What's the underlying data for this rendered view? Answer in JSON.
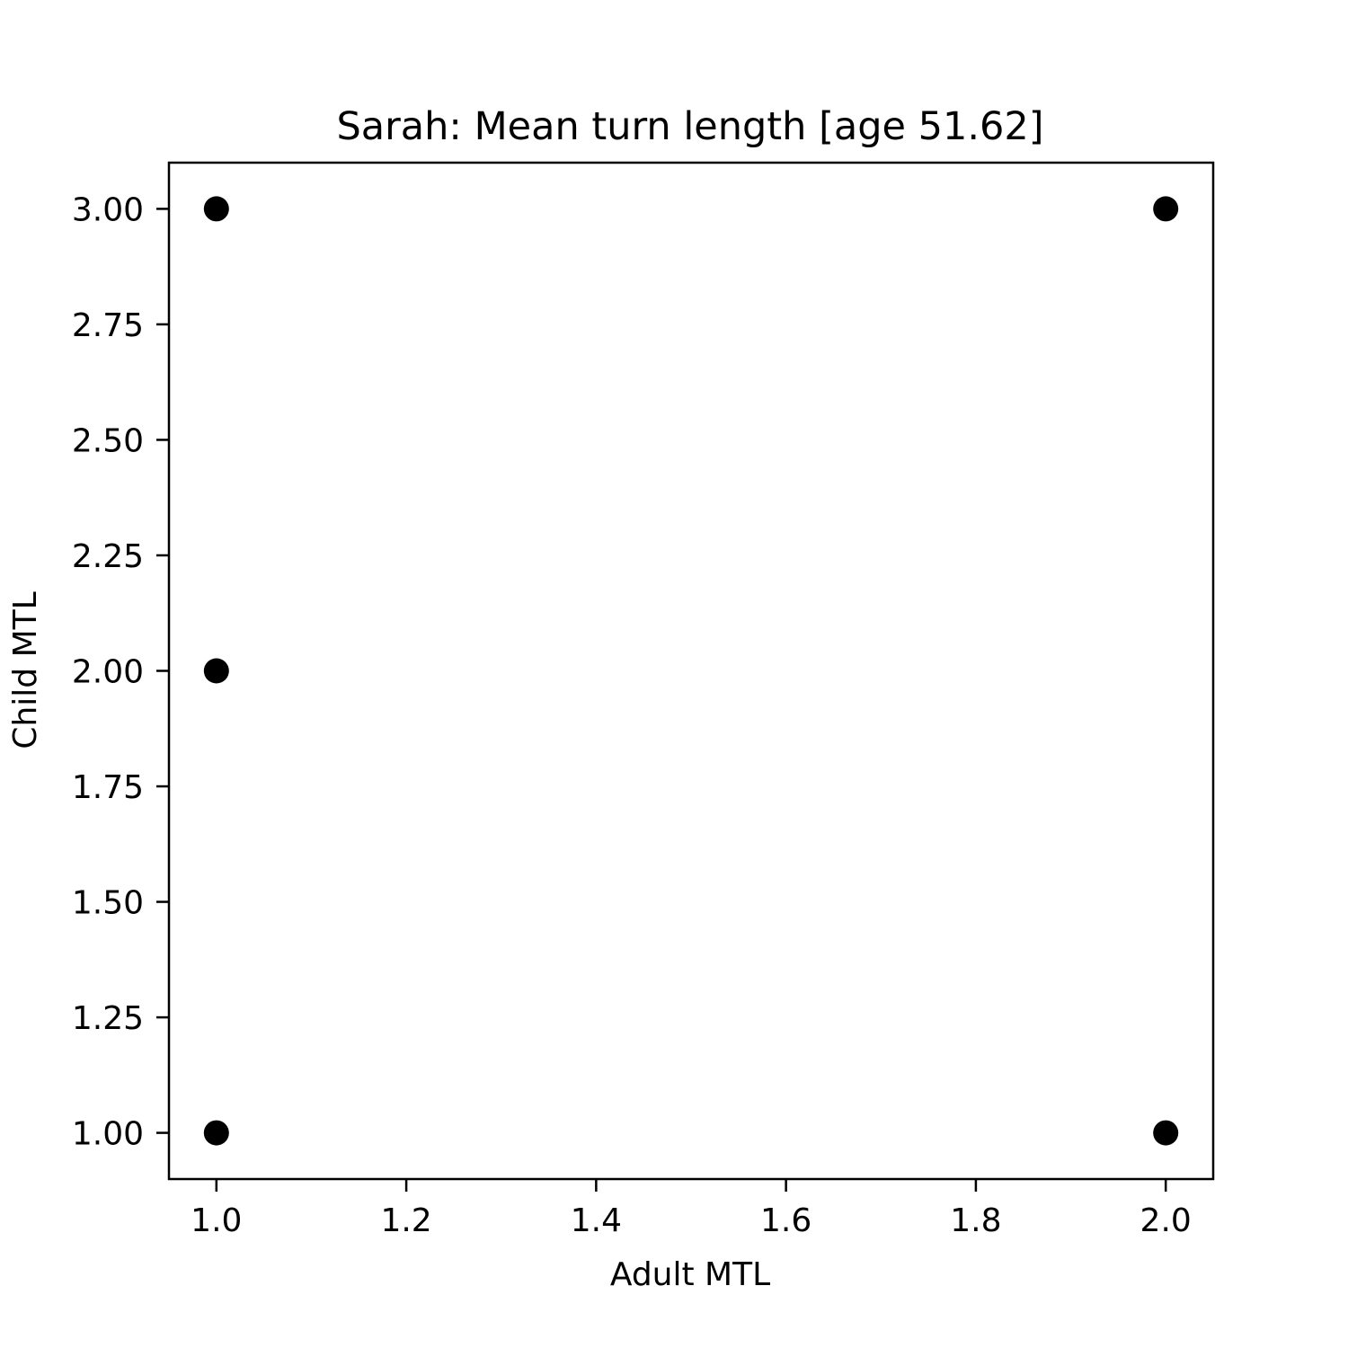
{
  "chart_data": {
    "type": "scatter",
    "title": "Sarah: Mean turn length [age 51.62]",
    "xlabel": "Adult MTL",
    "ylabel": "Child MTL",
    "xlim": [
      0.95,
      2.05
    ],
    "ylim": [
      0.9,
      3.1
    ],
    "x_ticks": [
      1.0,
      1.2,
      1.4,
      1.6,
      1.8,
      2.0
    ],
    "x_tick_labels": [
      "1.0",
      "1.2",
      "1.4",
      "1.6",
      "1.8",
      "2.0"
    ],
    "y_ticks": [
      1.0,
      1.25,
      1.5,
      1.75,
      2.0,
      2.25,
      2.5,
      2.75,
      3.0
    ],
    "y_tick_labels": [
      "1.00",
      "1.25",
      "1.50",
      "1.75",
      "2.00",
      "2.25",
      "2.50",
      "2.75",
      "3.00"
    ],
    "grid": false,
    "marker_color": "#000000",
    "points": [
      {
        "x": 1.0,
        "y": 3.0
      },
      {
        "x": 1.0,
        "y": 2.0
      },
      {
        "x": 1.0,
        "y": 1.0
      },
      {
        "x": 2.0,
        "y": 3.0
      },
      {
        "x": 2.0,
        "y": 1.0
      }
    ]
  }
}
